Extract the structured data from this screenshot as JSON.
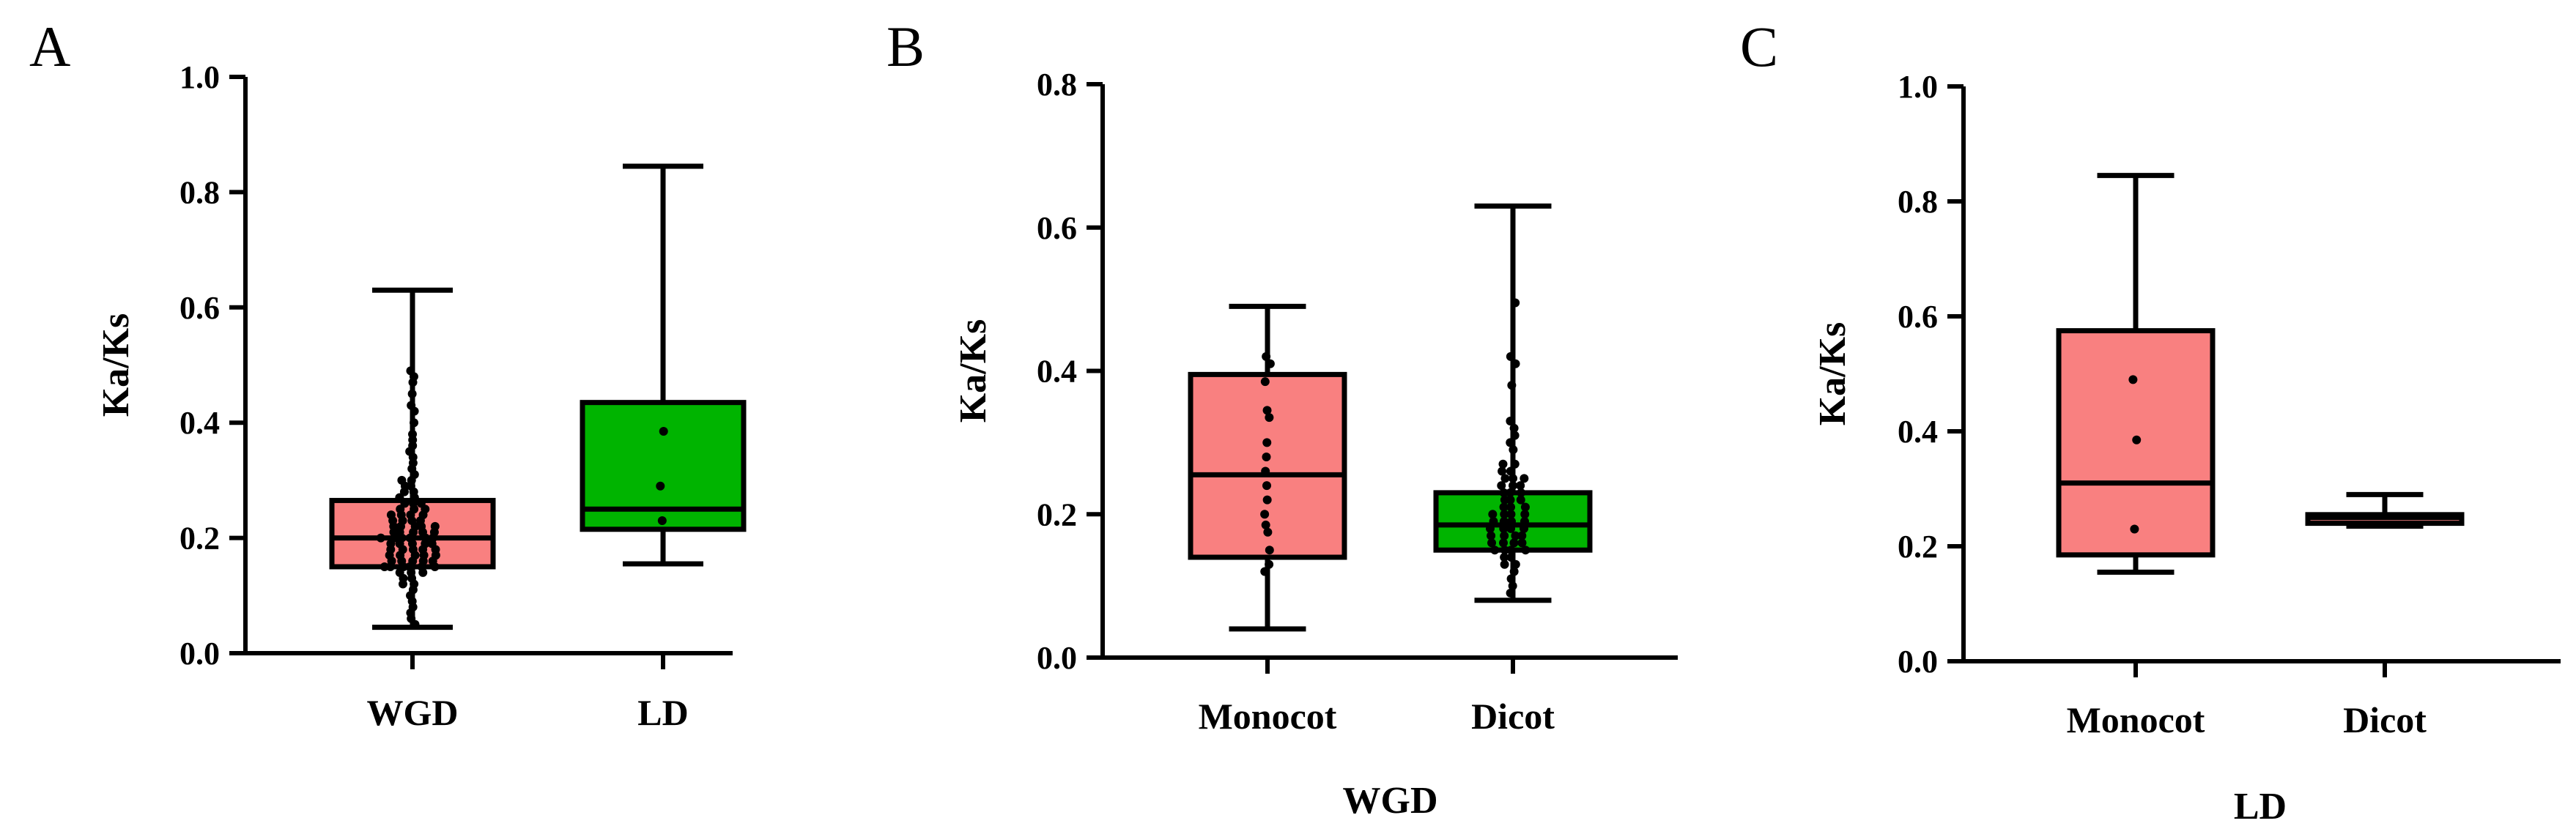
{
  "figure": {
    "background": "#ffffff",
    "box_colors": {
      "pink": "#f98080",
      "green": "#00b400"
    }
  },
  "chart_data": [
    {
      "panel": "A",
      "type": "box",
      "title": "",
      "xlabel": "",
      "ylabel": "Ka/Ks",
      "ylim": [
        0,
        1.0
      ],
      "yticks": [
        "0.0",
        "0.2",
        "0.4",
        "0.6",
        "0.8",
        "1.0"
      ],
      "categories": [
        "WGD",
        "LD"
      ],
      "boxes": [
        {
          "category": "WGD",
          "color": "pink",
          "min": 0.045,
          "q1": 0.15,
          "median": 0.2,
          "q3": 0.265,
          "max": 0.63,
          "points": [
            0.49,
            0.48,
            0.47,
            0.45,
            0.43,
            0.42,
            0.4,
            0.38,
            0.37,
            0.36,
            0.35,
            0.34,
            0.33,
            0.32,
            0.31,
            0.3,
            0.3,
            0.29,
            0.29,
            0.28,
            0.28,
            0.27,
            0.27,
            0.26,
            0.26,
            0.26,
            0.25,
            0.25,
            0.25,
            0.24,
            0.24,
            0.24,
            0.24,
            0.23,
            0.23,
            0.23,
            0.23,
            0.22,
            0.22,
            0.22,
            0.22,
            0.22,
            0.21,
            0.21,
            0.21,
            0.21,
            0.21,
            0.2,
            0.2,
            0.2,
            0.2,
            0.2,
            0.2,
            0.19,
            0.19,
            0.19,
            0.19,
            0.19,
            0.18,
            0.18,
            0.18,
            0.18,
            0.18,
            0.17,
            0.17,
            0.17,
            0.17,
            0.17,
            0.16,
            0.16,
            0.16,
            0.16,
            0.16,
            0.15,
            0.15,
            0.15,
            0.15,
            0.15,
            0.15,
            0.14,
            0.14,
            0.14,
            0.13,
            0.13,
            0.12,
            0.12,
            0.11,
            0.1,
            0.09,
            0.08,
            0.07,
            0.06,
            0.05
          ]
        },
        {
          "category": "LD",
          "color": "green",
          "min": 0.155,
          "q1": 0.215,
          "median": 0.25,
          "q3": 0.435,
          "max": 0.845,
          "points": [
            0.385,
            0.29,
            0.23
          ]
        }
      ]
    },
    {
      "panel": "B",
      "type": "box",
      "title": "",
      "xlabel": "WGD",
      "ylabel": "Ka/Ks",
      "ylim": [
        0,
        0.8
      ],
      "yticks": [
        "0.0",
        "0.2",
        "0.4",
        "0.6",
        "0.8"
      ],
      "categories": [
        "Monocot",
        "Dicot"
      ],
      "boxes": [
        {
          "category": "Monocot",
          "color": "pink",
          "min": 0.04,
          "q1": 0.14,
          "median": 0.255,
          "q3": 0.395,
          "max": 0.49,
          "points": [
            0.42,
            0.41,
            0.385,
            0.345,
            0.335,
            0.3,
            0.28,
            0.26,
            0.24,
            0.22,
            0.2,
            0.185,
            0.175,
            0.15,
            0.13,
            0.12
          ]
        },
        {
          "category": "Dicot",
          "color": "green",
          "min": 0.08,
          "q1": 0.15,
          "median": 0.185,
          "q3": 0.23,
          "max": 0.63,
          "points": [
            0.495,
            0.42,
            0.41,
            0.38,
            0.33,
            0.32,
            0.31,
            0.3,
            0.29,
            0.27,
            0.27,
            0.26,
            0.26,
            0.25,
            0.25,
            0.25,
            0.24,
            0.24,
            0.24,
            0.23,
            0.23,
            0.23,
            0.22,
            0.22,
            0.22,
            0.21,
            0.21,
            0.21,
            0.2,
            0.2,
            0.2,
            0.2,
            0.19,
            0.19,
            0.19,
            0.19,
            0.18,
            0.18,
            0.18,
            0.18,
            0.17,
            0.17,
            0.17,
            0.17,
            0.16,
            0.16,
            0.16,
            0.16,
            0.15,
            0.15,
            0.15,
            0.15,
            0.14,
            0.14,
            0.13,
            0.13,
            0.12,
            0.11,
            0.1,
            0.09
          ]
        }
      ]
    },
    {
      "panel": "C",
      "type": "box",
      "title": "",
      "xlabel": "LD",
      "ylabel": "Ka/Ks",
      "ylim": [
        0,
        1.0
      ],
      "yticks": [
        "0.0",
        "0.2",
        "0.4",
        "0.6",
        "0.8",
        "1.0"
      ],
      "categories": [
        "Monocot",
        "Dicot"
      ],
      "boxes": [
        {
          "category": "Monocot",
          "color": "pink",
          "min": 0.155,
          "q1": 0.185,
          "median": 0.31,
          "q3": 0.575,
          "max": 0.845,
          "points": [
            0.49,
            0.385,
            0.23
          ]
        },
        {
          "category": "Dicot",
          "color": "pink",
          "min": 0.235,
          "q1": 0.24,
          "median": 0.25,
          "q3": 0.255,
          "max": 0.29,
          "points": []
        }
      ]
    }
  ]
}
